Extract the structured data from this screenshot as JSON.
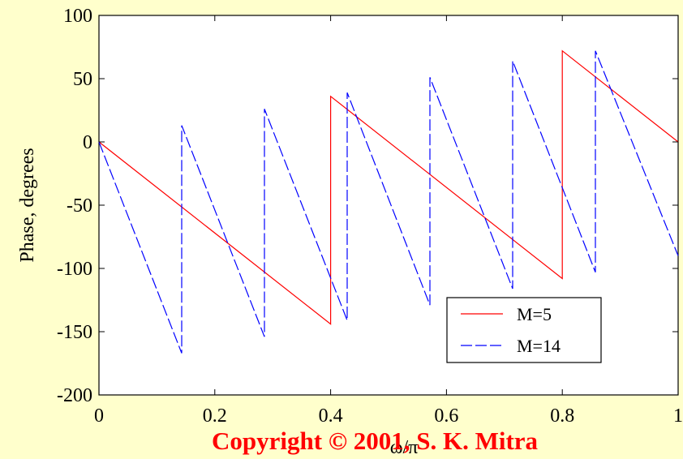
{
  "chart_data": {
    "type": "line",
    "title": "",
    "xlabel": "ω/π",
    "ylabel": "Phase, degrees",
    "xlim": [
      0,
      1
    ],
    "ylim": [
      -200,
      100
    ],
    "xticks": [
      0,
      0.2,
      0.4,
      0.6,
      0.8,
      1
    ],
    "xtick_labels": [
      "0",
      "0.2",
      "0.4",
      "0.6",
      "0.8",
      "1"
    ],
    "yticks": [
      -200,
      -150,
      -100,
      -50,
      0,
      50,
      100
    ],
    "ytick_labels": [
      "-200",
      "-150",
      "-100",
      "-50",
      "0",
      "50",
      "100"
    ],
    "grid": false,
    "legend_position": "bottom-right",
    "series": [
      {
        "name": "M=5",
        "color": "#FF0000",
        "style": "solid",
        "x": [
          0,
          0.4,
          0.4,
          0.8,
          0.8,
          1.0
        ],
        "y": [
          0,
          -144,
          36,
          -108,
          72,
          0
        ]
      },
      {
        "name": "M=14",
        "color": "#0000FF",
        "style": "dashed",
        "x": [
          0,
          0.1429,
          0.1429,
          0.2857,
          0.2857,
          0.4286,
          0.4286,
          0.5714,
          0.5714,
          0.7143,
          0.7143,
          0.8571,
          0.8571,
          1.0
        ],
        "y": [
          0,
          -167,
          13,
          -154,
          26,
          -141,
          39,
          -129,
          51,
          -116,
          64,
          -103,
          72,
          -90
        ]
      }
    ]
  },
  "copyright": "Copyright © 2001, S. K. Mitra"
}
